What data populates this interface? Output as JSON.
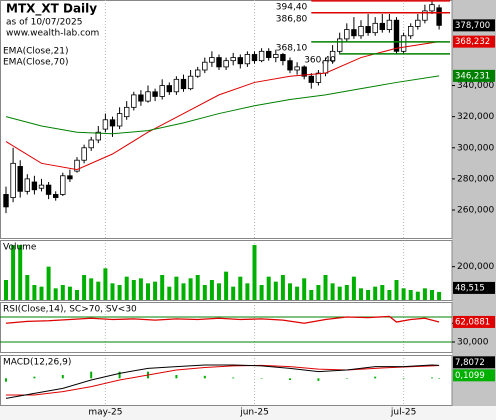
{
  "chart_data": [
    {
      "type": "candlestick",
      "title": "MTX_XT Daily",
      "subtitle": "as of 10/07/2025",
      "source": "www.wealth-lab.com",
      "open": [
        270,
        268,
        288,
        272,
        278,
        274,
        276,
        270,
        270,
        282,
        285,
        292,
        300,
        305,
        312,
        318,
        314,
        320,
        326,
        334,
        330,
        336,
        333,
        340,
        336,
        344,
        338,
        346,
        350,
        355,
        358,
        352,
        356,
        358,
        354,
        360,
        356,
        362,
        358,
        360,
        356,
        350,
        352,
        346,
        342,
        348,
        356,
        362,
        370,
        376,
        372,
        378,
        374,
        380,
        376,
        382,
        362,
        372,
        378,
        382,
        388,
        390
      ],
      "high": [
        275,
        300,
        292,
        283,
        282,
        280,
        278,
        272,
        284,
        286,
        294,
        302,
        307,
        314,
        322,
        320,
        326,
        330,
        336,
        337,
        340,
        338,
        344,
        342,
        346,
        347,
        350,
        352,
        358,
        362,
        360,
        358,
        361,
        360,
        362,
        362,
        364,
        364,
        363,
        361,
        358,
        355,
        353,
        348,
        350,
        358,
        366,
        374,
        380,
        384,
        382,
        386,
        384,
        386,
        386,
        384,
        374,
        380,
        386,
        392,
        394.4,
        392
      ],
      "low": [
        258,
        265,
        268,
        270,
        270,
        272,
        267,
        266,
        269,
        278,
        284,
        290,
        298,
        303,
        310,
        307,
        312,
        318,
        324,
        327,
        329,
        330,
        331,
        334,
        334,
        336,
        337,
        345,
        348,
        352,
        350,
        350,
        353,
        351,
        352,
        354,
        355,
        356,
        355,
        353,
        348,
        347,
        344,
        338,
        340,
        346,
        354,
        360,
        368,
        370,
        370,
        372,
        372,
        374,
        374,
        360,
        360,
        370,
        376,
        380,
        386,
        376
      ],
      "close": [
        262,
        290,
        272,
        280,
        273,
        276,
        270,
        268,
        282,
        280,
        292,
        300,
        305,
        310,
        318,
        314,
        322,
        326,
        334,
        330,
        336,
        333,
        340,
        336,
        344,
        338,
        346,
        350,
        355,
        358,
        352,
        356,
        358,
        354,
        360,
        356,
        362,
        358,
        360,
        356,
        350,
        352,
        346,
        342,
        348,
        356,
        362,
        370,
        376,
        372,
        378,
        374,
        380,
        376,
        382,
        362,
        372,
        378,
        382,
        388,
        392,
        378.7
      ],
      "close_label": "378,700",
      "color_up": "#ffffff",
      "color_down": "#000000",
      "ylim": [
        242,
        395
      ],
      "yticks": [
        {
          "value": 260,
          "label": "260,000"
        },
        {
          "value": 280,
          "label": "280,000"
        },
        {
          "value": 300,
          "label": "300,000"
        },
        {
          "value": 320,
          "label": "320,000"
        },
        {
          "value": 340,
          "label": "340,000"
        }
      ],
      "xticks": [
        {
          "value": 14,
          "label": "may-25"
        },
        {
          "value": 35,
          "label": "jun-25"
        },
        {
          "value": 56,
          "label": "jul-25"
        }
      ],
      "series": [
        {
          "name": "EMA(Close,21)",
          "color": "#e00000",
          "x": [
            0,
            5,
            10,
            15,
            20,
            25,
            30,
            35,
            40,
            45,
            50,
            55,
            61
          ],
          "values": [
            304,
            290,
            286,
            296,
            310,
            322,
            334,
            342,
            346,
            348,
            358,
            364,
            368.232
          ],
          "last_label": "368,232"
        },
        {
          "name": "EMA(Close,70)",
          "color": "#008000",
          "x": [
            0,
            5,
            10,
            15,
            20,
            25,
            30,
            35,
            40,
            45,
            50,
            55,
            61
          ],
          "values": [
            320,
            314,
            310,
            309,
            311,
            316,
            322,
            327,
            331,
            334,
            338,
            342,
            346.231
          ],
          "last_label": "346,231"
        }
      ],
      "levels": [
        {
          "value": 394.4,
          "label": "394,40",
          "color": "#e00000",
          "from": 43
        },
        {
          "value": 386.8,
          "label": "386,80",
          "color": "#e00000",
          "from": 43
        },
        {
          "value": 368.1,
          "label": "368,10",
          "color": "#008000",
          "from": 43
        },
        {
          "value": 360.4,
          "label": "360,40",
          "color": "#008000",
          "from": 47
        }
      ]
    },
    {
      "type": "bar",
      "title": "Volume",
      "color": "#00b000",
      "values": [
        120000,
        330000,
        330000,
        150000,
        90000,
        80000,
        200000,
        70000,
        90000,
        80000,
        60000,
        150000,
        130000,
        110000,
        190000,
        100000,
        90000,
        140000,
        120000,
        130000,
        100000,
        110000,
        150000,
        80000,
        140000,
        100000,
        130000,
        150000,
        90000,
        120000,
        100000,
        170000,
        80000,
        140000,
        100000,
        330000,
        90000,
        140000,
        110000,
        150000,
        100000,
        80000,
        130000,
        60000,
        90000,
        150000,
        100000,
        80000,
        90000,
        140000,
        70000,
        60000,
        80000,
        90000,
        60000,
        120000,
        70000,
        60000,
        50000,
        70000,
        60000,
        48515
      ],
      "last_label": "48,515",
      "ylim": [
        0,
        360000
      ],
      "yticks": [
        {
          "value": 200000,
          "label": "200,000"
        }
      ]
    },
    {
      "type": "line",
      "title": "RSI(Close,14), SC>70, SV<30",
      "color": "#e00000",
      "x": [
        0,
        3,
        6,
        9,
        12,
        15,
        18,
        21,
        24,
        27,
        30,
        33,
        36,
        39,
        42,
        45,
        48,
        51,
        54,
        55,
        57,
        59,
        61
      ],
      "values": [
        60,
        63,
        64,
        66,
        68,
        66,
        67,
        65,
        67,
        66,
        68,
        66,
        67,
        65,
        60,
        66,
        70,
        69,
        71,
        62,
        66,
        68,
        62.0881
      ],
      "last_label": "62,0881",
      "bands": [
        70,
        30
      ],
      "band_color": "#008000",
      "ylim": [
        14,
        94
      ],
      "yticks": [
        {
          "value": 60,
          "label": "60,000"
        },
        {
          "value": 30,
          "label": "30,000"
        }
      ]
    },
    {
      "type": "macd",
      "title": "MACD(12,26,9)",
      "x": [
        0,
        4,
        8,
        12,
        16,
        20,
        24,
        28,
        32,
        36,
        40,
        44,
        48,
        52,
        56,
        60,
        61
      ],
      "macd": {
        "color": "#000000",
        "values": [
          -12,
          -9,
          -6,
          -1,
          3,
          6,
          7,
          8,
          8,
          7.5,
          6,
          4,
          5,
          7,
          7,
          8,
          7.8072
        ],
        "last_label": "7,8072"
      },
      "signal": {
        "color": "#e00000",
        "values": [
          -10,
          -10,
          -8,
          -5,
          -1,
          2,
          5,
          6.5,
          7.5,
          7.8,
          7,
          5.5,
          5,
          6,
          6.8,
          7.5,
          7.7
        ]
      },
      "histogram": {
        "color": "#00b000",
        "values": [
          -2,
          1,
          2,
          4,
          4,
          4,
          2,
          1.5,
          0.5,
          -0.3,
          -1,
          -1.5,
          0,
          1,
          0.2,
          0.5,
          0.1099
        ],
        "last_label": "0,1099"
      },
      "ylim": [
        -16,
        14
      ]
    }
  ]
}
